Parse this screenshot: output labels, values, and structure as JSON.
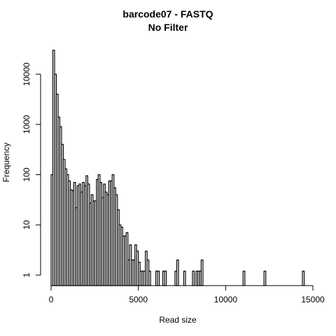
{
  "chart_data": {
    "type": "bar",
    "title": "barcode07 - FASTQ",
    "subtitle": "No Filter",
    "xlabel": "Read size",
    "ylabel": "Frequency",
    "log_y": true,
    "xlim": [
      0,
      15000
    ],
    "ylim": [
      1,
      30000
    ],
    "x_ticks": [
      0,
      5000,
      10000,
      15000
    ],
    "x_tick_labels": [
      "0",
      "5000",
      "10000",
      "15000"
    ],
    "y_ticks": [
      1,
      10,
      100,
      1000,
      10000
    ],
    "y_tick_labels": [
      "1",
      "10",
      "100",
      "1000",
      "10000"
    ],
    "bin_width": 100,
    "bins": [
      {
        "x": 0,
        "y": 100
      },
      {
        "x": 100,
        "y": 30000
      },
      {
        "x": 200,
        "y": 10000
      },
      {
        "x": 300,
        "y": 4000
      },
      {
        "x": 400,
        "y": 1400
      },
      {
        "x": 500,
        "y": 900
      },
      {
        "x": 600,
        "y": 400
      },
      {
        "x": 700,
        "y": 200
      },
      {
        "x": 800,
        "y": 130
      },
      {
        "x": 900,
        "y": 100
      },
      {
        "x": 1000,
        "y": 75
      },
      {
        "x": 1100,
        "y": 50
      },
      {
        "x": 1200,
        "y": 48
      },
      {
        "x": 1300,
        "y": 70
      },
      {
        "x": 1400,
        "y": 22
      },
      {
        "x": 1500,
        "y": 60
      },
      {
        "x": 1600,
        "y": 65
      },
      {
        "x": 1700,
        "y": 45
      },
      {
        "x": 1800,
        "y": 70
      },
      {
        "x": 1900,
        "y": 60
      },
      {
        "x": 2000,
        "y": 95
      },
      {
        "x": 2100,
        "y": 65
      },
      {
        "x": 2200,
        "y": 27
      },
      {
        "x": 2300,
        "y": 40
      },
      {
        "x": 2400,
        "y": 30
      },
      {
        "x": 2500,
        "y": 30
      },
      {
        "x": 2600,
        "y": 80
      },
      {
        "x": 2700,
        "y": 100
      },
      {
        "x": 2800,
        "y": 70
      },
      {
        "x": 2900,
        "y": 35
      },
      {
        "x": 3000,
        "y": 65
      },
      {
        "x": 3100,
        "y": 45
      },
      {
        "x": 3200,
        "y": 40
      },
      {
        "x": 3300,
        "y": 75
      },
      {
        "x": 3400,
        "y": 75
      },
      {
        "x": 3500,
        "y": 100
      },
      {
        "x": 3600,
        "y": 55
      },
      {
        "x": 3700,
        "y": 40
      },
      {
        "x": 3800,
        "y": 20
      },
      {
        "x": 3900,
        "y": 10
      },
      {
        "x": 4000,
        "y": 9
      },
      {
        "x": 4100,
        "y": 6
      },
      {
        "x": 4200,
        "y": 6
      },
      {
        "x": 4300,
        "y": 7
      },
      {
        "x": 4400,
        "y": 2
      },
      {
        "x": 4500,
        "y": 4
      },
      {
        "x": 4600,
        "y": 2
      },
      {
        "x": 4700,
        "y": 2
      },
      {
        "x": 4800,
        "y": 4
      },
      {
        "x": 4900,
        "y": 3
      },
      {
        "x": 5000,
        "y": 1.8
      },
      {
        "x": 5100,
        "y": 1.2
      },
      {
        "x": 5200,
        "y": 1.2
      },
      {
        "x": 5300,
        "y": 1.2
      },
      {
        "x": 5400,
        "y": 3
      },
      {
        "x": 5500,
        "y": 2
      },
      {
        "x": 5600,
        "y": 1.2
      },
      {
        "x": 6000,
        "y": 1.2
      },
      {
        "x": 6100,
        "y": 1.2
      },
      {
        "x": 6400,
        "y": 1.2
      },
      {
        "x": 6500,
        "y": 1.2
      },
      {
        "x": 7100,
        "y": 1.2
      },
      {
        "x": 7200,
        "y": 2
      },
      {
        "x": 7600,
        "y": 1.2
      },
      {
        "x": 8100,
        "y": 1.2
      },
      {
        "x": 8300,
        "y": 1.2
      },
      {
        "x": 8400,
        "y": 1.2
      },
      {
        "x": 8500,
        "y": 1.2
      },
      {
        "x": 8600,
        "y": 2
      },
      {
        "x": 11000,
        "y": 1.2
      },
      {
        "x": 12200,
        "y": 1.2
      },
      {
        "x": 14400,
        "y": 1.2
      }
    ]
  }
}
